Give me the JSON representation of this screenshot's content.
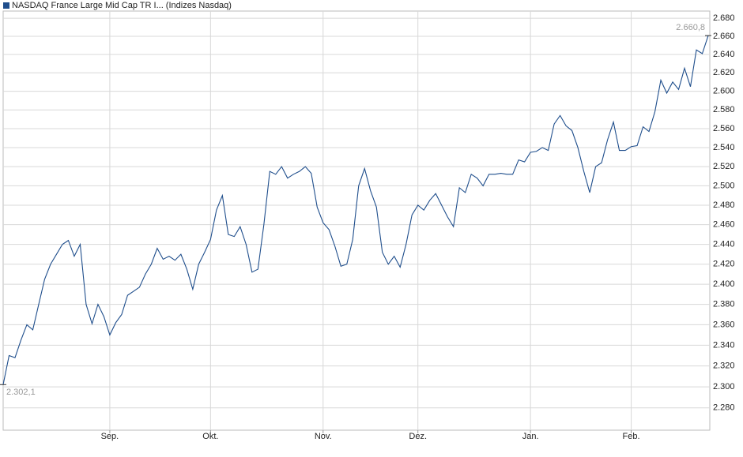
{
  "chart_data": {
    "type": "line",
    "title": "NASDAQ France Large Mid Cap TR I... (Indizes Nasdaq)",
    "color": "#1f4e8c",
    "log": true,
    "grid": true,
    "categories": [
      null,
      null,
      null,
      null,
      null,
      null,
      null,
      null,
      null,
      null,
      null,
      null,
      null,
      null,
      null,
      null,
      null,
      null,
      "Sep.",
      null,
      null,
      null,
      null,
      null,
      null,
      null,
      null,
      null,
      null,
      null,
      null,
      null,
      null,
      null,
      null,
      "Okt.",
      null,
      null,
      null,
      null,
      null,
      null,
      null,
      null,
      null,
      null,
      null,
      null,
      null,
      null,
      null,
      null,
      null,
      null,
      "Nov.",
      null,
      null,
      null,
      null,
      null,
      null,
      null,
      null,
      null,
      null,
      null,
      null,
      null,
      null,
      null,
      "Dez.",
      null,
      null,
      null,
      null,
      null,
      null,
      null,
      null,
      null,
      null,
      null,
      null,
      null,
      null,
      null,
      null,
      null,
      null,
      "Jan.",
      null,
      null,
      null,
      null,
      null,
      null,
      null,
      null,
      null,
      null,
      null,
      null,
      null,
      null,
      null,
      null,
      "Feb.",
      null,
      null,
      null,
      null,
      null,
      null,
      null,
      null,
      null,
      null,
      null,
      null,
      null
    ],
    "values": [
      2302.1,
      2330,
      2328,
      2345,
      2360,
      2355,
      2380,
      2405,
      2420,
      2430,
      2440,
      2444,
      2428,
      2440,
      2380,
      2361,
      2380,
      2368,
      2350,
      2362,
      2370,
      2389,
      2393,
      2397,
      2410,
      2420,
      2436,
      2425,
      2428,
      2424,
      2430,
      2415,
      2395,
      2420,
      2432,
      2445,
      2475,
      2490,
      2450,
      2448,
      2458,
      2440,
      2412,
      2415,
      2460,
      2515,
      2512,
      2520,
      2508,
      2512,
      2515,
      2520,
      2513,
      2478,
      2462,
      2455,
      2438,
      2418,
      2420,
      2445,
      2500,
      2518,
      2495,
      2478,
      2432,
      2420,
      2428,
      2417,
      2440,
      2470,
      2480,
      2475,
      2485,
      2492,
      2480,
      2468,
      2458,
      2498,
      2493,
      2512,
      2508,
      2500,
      2512,
      2512,
      2513,
      2512,
      2512,
      2527,
      2525,
      2535,
      2536,
      2540,
      2537,
      2565,
      2574,
      2563,
      2558,
      2540,
      2515,
      2493,
      2520,
      2524,
      2548,
      2567,
      2537,
      2537,
      2541,
      2542,
      2562,
      2557,
      2578,
      2612,
      2598,
      2610,
      2602,
      2625,
      2605,
      2645,
      2641,
      2660.8
    ],
    "value_labels": [
      "2.302,1",
      null,
      null,
      null,
      null,
      null,
      null,
      null,
      null,
      null,
      null,
      null,
      null,
      null,
      null,
      null,
      null,
      null,
      null,
      null,
      null,
      null,
      null,
      null,
      null,
      null,
      null,
      null,
      null,
      null,
      null,
      null,
      null,
      null,
      null,
      null,
      null,
      null,
      null,
      null,
      null,
      null,
      null,
      null,
      null,
      null,
      null,
      null,
      null,
      null,
      null,
      null,
      null,
      null,
      null,
      null,
      null,
      null,
      null,
      null,
      null,
      null,
      null,
      null,
      null,
      null,
      null,
      null,
      null,
      null,
      null,
      null,
      null,
      null,
      null,
      null,
      null,
      null,
      null,
      null,
      null,
      null,
      null,
      null,
      null,
      null,
      null,
      null,
      null,
      null,
      null,
      null,
      null,
      null,
      null,
      null,
      null,
      null,
      null,
      null,
      null,
      null,
      null,
      null,
      null,
      null,
      null,
      null,
      null,
      null,
      null,
      null,
      null,
      null,
      null,
      null,
      null,
      null,
      null,
      "2.660,8"
    ],
    "ylim": [
      2259,
      2688
    ],
    "yticks": [
      {
        "value": 2280,
        "label": "2.280"
      },
      {
        "value": 2300,
        "label": "2.300"
      },
      {
        "value": 2320,
        "label": "2.320"
      },
      {
        "value": 2340,
        "label": "2.340"
      },
      {
        "value": 2360,
        "label": "2.360"
      },
      {
        "value": 2380,
        "label": "2.380"
      },
      {
        "value": 2400,
        "label": "2.400"
      },
      {
        "value": 2420,
        "label": "2.420"
      },
      {
        "value": 2440,
        "label": "2.440"
      },
      {
        "value": 2460,
        "label": "2.460"
      },
      {
        "value": 2480,
        "label": "2.480"
      },
      {
        "value": 2500,
        "label": "2.500"
      },
      {
        "value": 2520,
        "label": "2.520"
      },
      {
        "value": 2540,
        "label": "2.540"
      },
      {
        "value": 2560,
        "label": "2.560"
      },
      {
        "value": 2580,
        "label": "2.580"
      },
      {
        "value": 2600,
        "label": "2.600"
      },
      {
        "value": 2620,
        "label": "2.620"
      },
      {
        "value": 2640,
        "label": "2.640"
      },
      {
        "value": 2660,
        "label": "2.660"
      },
      {
        "value": 2680,
        "label": "2.680"
      }
    ]
  }
}
